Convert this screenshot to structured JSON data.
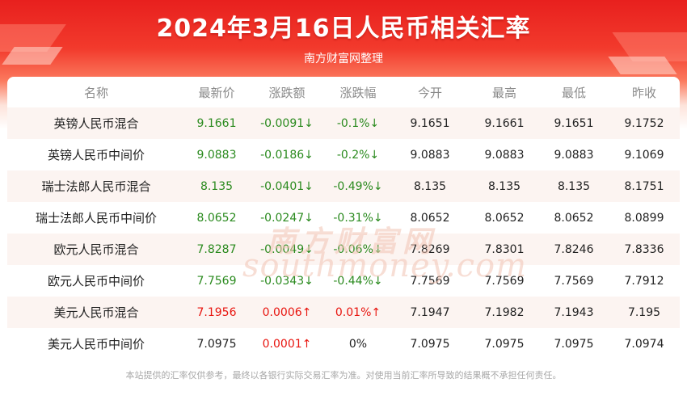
{
  "header": {
    "title": "2024年3月16日人民币相关汇率",
    "subtitle": "南方财富网整理"
  },
  "table": {
    "columns": [
      "名称",
      "最新价",
      "涨跌额",
      "涨跌幅",
      "今开",
      "最高",
      "最低",
      "昨收"
    ],
    "rows": [
      {
        "name": "英镑人民币混合",
        "latest": "9.1661",
        "change": "-0.0091↓",
        "pct": "-0.1%↓",
        "open": "9.1651",
        "high": "9.1661",
        "low": "9.1651",
        "prev": "9.1752",
        "trend": "down"
      },
      {
        "name": "英镑人民币中间价",
        "latest": "9.0883",
        "change": "-0.0186↓",
        "pct": "-0.2%↓",
        "open": "9.0883",
        "high": "9.0883",
        "low": "9.0883",
        "prev": "9.1069",
        "trend": "down"
      },
      {
        "name": "瑞士法郎人民币混合",
        "latest": "8.135",
        "change": "-0.0401↓",
        "pct": "-0.49%↓",
        "open": "8.135",
        "high": "8.135",
        "low": "8.135",
        "prev": "8.1751",
        "trend": "down"
      },
      {
        "name": "瑞士法郎人民币中间价",
        "latest": "8.0652",
        "change": "-0.0247↓",
        "pct": "-0.31%↓",
        "open": "8.0652",
        "high": "8.0652",
        "low": "8.0652",
        "prev": "8.0899",
        "trend": "down"
      },
      {
        "name": "欧元人民币混合",
        "latest": "7.8287",
        "change": "-0.0049↓",
        "pct": "-0.06%↓",
        "open": "7.8269",
        "high": "7.8301",
        "low": "7.8246",
        "prev": "7.8336",
        "trend": "down"
      },
      {
        "name": "欧元人民币中间价",
        "latest": "7.7569",
        "change": "-0.0343↓",
        "pct": "-0.44%↓",
        "open": "7.7569",
        "high": "7.7569",
        "low": "7.7569",
        "prev": "7.7912",
        "trend": "down"
      },
      {
        "name": "美元人民币混合",
        "latest": "7.1956",
        "change": "0.0006↑",
        "pct": "0.01%↑",
        "open": "7.1947",
        "high": "7.1982",
        "low": "7.1943",
        "prev": "7.195",
        "trend": "up"
      },
      {
        "name": "美元人民币中间价",
        "latest": "7.0975",
        "change": "0.0001↑",
        "pct": "0%",
        "open": "7.0975",
        "high": "7.0975",
        "low": "7.0975",
        "prev": "7.0974",
        "trend": "mixed"
      }
    ]
  },
  "watermark": {
    "cn": "南方财富网",
    "en": "southmoney.com"
  },
  "footer": {
    "disclaimer": "本站提供的汇率仅供参考，最终以各银行实际交易汇率为准。对使用当前汇率所导致的结果概不承担任何责任。"
  },
  "colors": {
    "banner_red": "#e8201e",
    "down_green": "#2a8a1e",
    "up_red": "#e8150f",
    "stripe": "#fcf4f1"
  }
}
